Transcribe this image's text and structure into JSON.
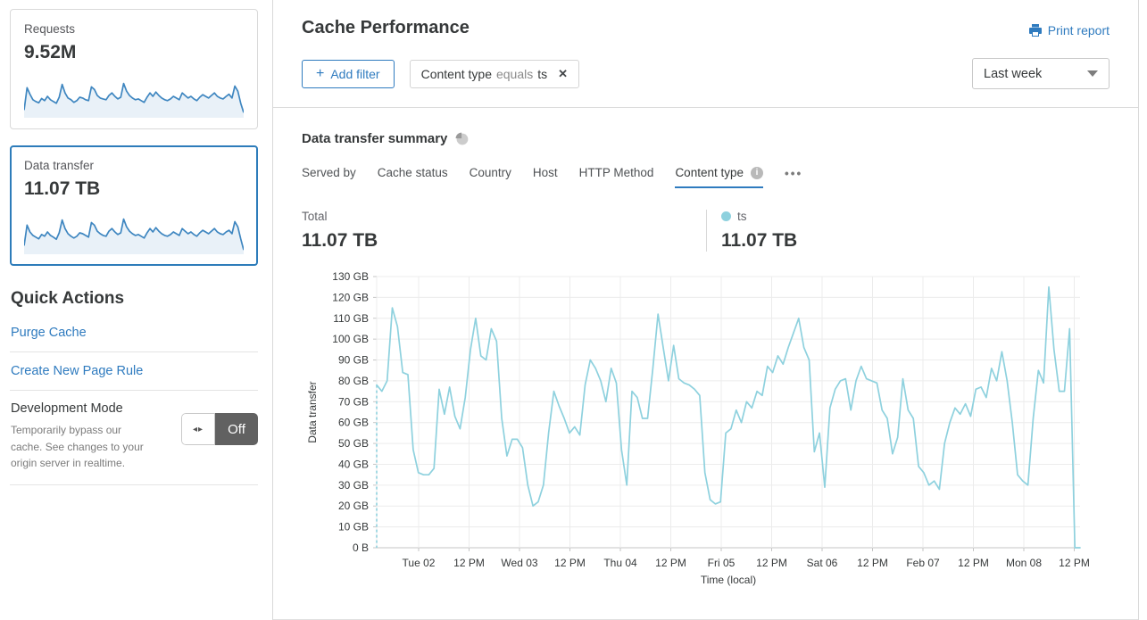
{
  "colors": {
    "accent": "#2f7bbf",
    "series": "#8ed1de",
    "spark_stroke": "#3e86c0",
    "spark_fill": "#e9f1f8",
    "selected_border": "#2d7cba"
  },
  "sidebar": {
    "cards": [
      {
        "label": "Requests",
        "value": "9.52M",
        "sparkline": [
          18,
          70,
          55,
          42,
          38,
          35,
          45,
          40,
          50,
          42,
          38,
          34,
          48,
          78,
          58,
          46,
          42,
          36,
          40,
          48,
          46,
          42,
          40,
          72,
          66,
          52,
          46,
          44,
          42,
          52,
          58,
          50,
          44,
          48,
          80,
          62,
          52,
          46,
          42,
          44,
          40,
          36,
          48,
          58,
          50,
          60,
          52,
          46,
          42,
          40,
          44,
          50,
          46,
          42,
          58,
          52,
          46,
          50,
          44,
          40,
          48,
          54,
          50,
          46,
          52,
          58,
          50,
          46,
          44,
          50,
          55,
          46,
          74,
          62,
          34,
          12
        ]
      },
      {
        "label": "Data transfer",
        "value": "11.07 TB",
        "selected": true,
        "sparkline": [
          20,
          68,
          52,
          44,
          40,
          36,
          46,
          42,
          52,
          44,
          40,
          35,
          50,
          80,
          60,
          48,
          42,
          38,
          42,
          50,
          48,
          44,
          40,
          74,
          68,
          54,
          48,
          44,
          42,
          54,
          60,
          52,
          46,
          50,
          82,
          64,
          54,
          48,
          44,
          46,
          42,
          38,
          50,
          60,
          52,
          62,
          54,
          48,
          44,
          42,
          46,
          52,
          48,
          44,
          60,
          54,
          48,
          52,
          46,
          42,
          50,
          56,
          52,
          48,
          54,
          60,
          52,
          48,
          46,
          52,
          56,
          48,
          76,
          64,
          36,
          10
        ]
      }
    ],
    "quick_actions": {
      "title": "Quick Actions",
      "links": [
        {
          "label": "Purge Cache"
        },
        {
          "label": "Create New Page Rule"
        }
      ],
      "dev_mode": {
        "title": "Development Mode",
        "description": "Temporarily bypass our cache. See changes to your origin server in realtime.",
        "toggle_state": "Off"
      }
    }
  },
  "header": {
    "title": "Cache Performance",
    "print_label": "Print report"
  },
  "filters": {
    "add_label": "Add filter",
    "chip": {
      "field": "Content type",
      "operator": "equals",
      "value": "ts"
    },
    "time_range": "Last week"
  },
  "summary": {
    "title": "Data transfer summary",
    "tabs": [
      {
        "label": "Served by"
      },
      {
        "label": "Cache status"
      },
      {
        "label": "Country"
      },
      {
        "label": "Host"
      },
      {
        "label": "HTTP Method"
      },
      {
        "label": "Content type",
        "active": true,
        "has_info": true
      }
    ],
    "more_label": "•••",
    "total_label": "Total",
    "total_value": "11.07 TB",
    "legend": {
      "name": "ts",
      "value": "11.07 TB",
      "color": "#8ed1de"
    }
  },
  "chart_data": {
    "type": "line",
    "title": "Data transfer summary",
    "ylabel": "Data transfer",
    "xlabel": "Time (local)",
    "unit": "GB",
    "grid": true,
    "y_axis": {
      "min": 0,
      "max": 130,
      "step": 10,
      "labels": [
        "0 B",
        "10 GB",
        "20 GB",
        "30 GB",
        "40 GB",
        "50 GB",
        "60 GB",
        "70 GB",
        "80 GB",
        "90 GB",
        "100 GB",
        "110 GB",
        "120 GB",
        "130 GB"
      ]
    },
    "x_tick_labels": [
      "Tue 02",
      "12 PM",
      "Wed 03",
      "12 PM",
      "Thu 04",
      "12 PM",
      "Fri 05",
      "12 PM",
      "Sat 06",
      "12 PM",
      "Feb 07",
      "12 PM",
      "Mon 08",
      "12 PM"
    ],
    "series": [
      {
        "name": "ts",
        "color": "#8ed1de",
        "total": "11.07 TB",
        "values": [
          78,
          75,
          80,
          115,
          106,
          84,
          83,
          47,
          36,
          35,
          35,
          38,
          76,
          64,
          77,
          63,
          57,
          72,
          95,
          110,
          92,
          90,
          105,
          99,
          62,
          44,
          52,
          52,
          48,
          30,
          20,
          22,
          30,
          55,
          75,
          68,
          62,
          55,
          58,
          54,
          78,
          90,
          86,
          80,
          70,
          86,
          79,
          47,
          30,
          75,
          72,
          62,
          62,
          86,
          112,
          96,
          80,
          97,
          81,
          79,
          78,
          76,
          73,
          36,
          23,
          21,
          22,
          55,
          57,
          66,
          60,
          70,
          67,
          75,
          73,
          87,
          84,
          92,
          88,
          96,
          103,
          110,
          96,
          90,
          46,
          55,
          29,
          67,
          76,
          80,
          81,
          66,
          80,
          87,
          81,
          80,
          79,
          66,
          62,
          45,
          53,
          81,
          66,
          62,
          39,
          36,
          30,
          32,
          28,
          50,
          60,
          67,
          64,
          69,
          63,
          76,
          77,
          72,
          86,
          80,
          94,
          80,
          60,
          35,
          32,
          30,
          62,
          85,
          79,
          125,
          95,
          75,
          75,
          105,
          0,
          0
        ]
      }
    ]
  }
}
